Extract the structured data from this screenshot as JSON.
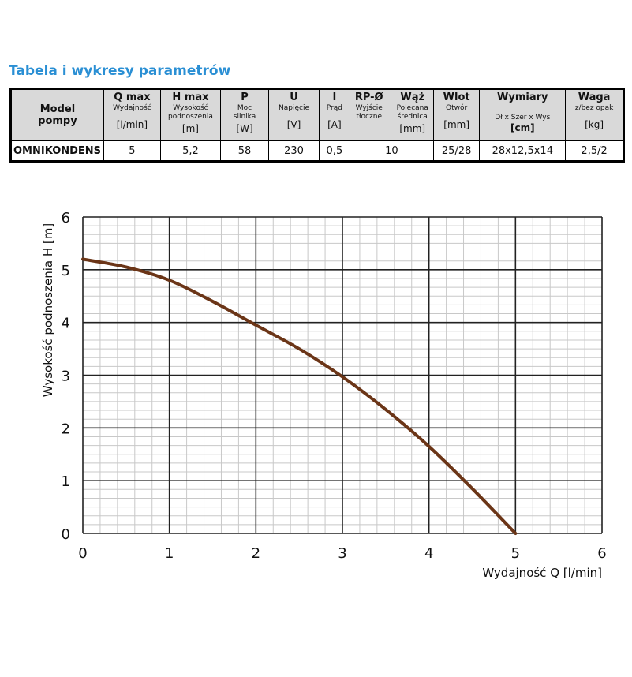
{
  "section_title": "Tabela i wykresy parametrów",
  "table": {
    "model_header": [
      "Model",
      "pompy"
    ],
    "columns": [
      {
        "name": "Q max",
        "sub": "Wydajność",
        "unit": "[l/min]"
      },
      {
        "name": "H max",
        "sub": "Wysokość podnoszenia",
        "unit": "[m]"
      },
      {
        "name": "P",
        "sub": "Moc silnika",
        "unit": "[W]"
      },
      {
        "name": "U",
        "sub": "Napięcie",
        "unit": "[V]"
      },
      {
        "name": "I",
        "sub": "Prąd",
        "unit": "[A]"
      },
      {
        "name": "Wlot",
        "sub": "Otwór",
        "unit": "[mm]"
      },
      {
        "name": "Wymiary",
        "sub": "Dł x Szer x Wys",
        "unit": "[cm]"
      },
      {
        "name": "Waga",
        "sub": "z/bez opak",
        "unit": "[kg]"
      }
    ],
    "rp": {
      "name": "RP-Ø",
      "sub1": "Wyjście",
      "sub2": "tłoczne"
    },
    "waz": {
      "name": "Wąż",
      "sub1": "Polecana",
      "sub2": "średnica",
      "unit": "[mm]"
    },
    "row": {
      "model": "OMNIKONDENS",
      "qmax": "5",
      "hmax": "5,2",
      "p": "58",
      "u": "230",
      "i": "0,5",
      "rp_waz": "10",
      "wlot": "25/28",
      "wymiary": "28x12,5x14",
      "waga": "2,5/2"
    }
  },
  "chart_data": {
    "type": "line",
    "xlabel": "Wydajność Q [l/min]",
    "ylabel": "Wysokość podnoszenia H [m]",
    "xlim": [
      0,
      6
    ],
    "ylim": [
      0,
      6
    ],
    "x_ticks": [
      "0",
      "1",
      "2",
      "3",
      "4",
      "5",
      "6"
    ],
    "y_ticks": [
      "0",
      "1",
      "2",
      "3",
      "4",
      "5",
      "6"
    ],
    "grid": true,
    "series": [
      {
        "color": "#6b3517",
        "x": [
          0,
          0.5,
          1.0,
          1.5,
          2.0,
          2.5,
          3.0,
          3.5,
          4.0,
          4.5,
          5.0
        ],
        "y": [
          5.2,
          5.05,
          4.8,
          4.4,
          3.95,
          3.5,
          2.97,
          2.35,
          1.65,
          0.85,
          0
        ]
      }
    ]
  }
}
